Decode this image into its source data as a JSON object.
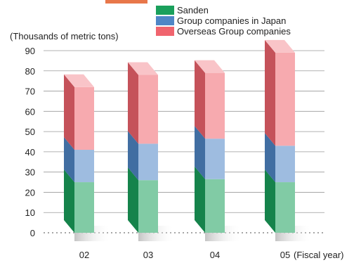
{
  "chart_data": {
    "type": "bar",
    "stacked": true,
    "style": "3d",
    "title": "",
    "ylabel": "(Thousands of metric tons)",
    "xlabel": "(Fiscal year)",
    "ylim": [
      0,
      90
    ],
    "yticks": [
      0,
      10,
      20,
      30,
      40,
      50,
      60,
      70,
      80,
      90
    ],
    "grid": true,
    "legend_position": "top-right",
    "categories": [
      "02",
      "03",
      "04",
      "05"
    ],
    "series": [
      {
        "name": "Sanden",
        "values": [
          25,
          26,
          26.5,
          25
        ],
        "color": "#1aa05c"
      },
      {
        "name": "Group companies in Japan",
        "values": [
          16,
          18,
          20,
          18
        ],
        "color": "#4f86c6"
      },
      {
        "name": "Overseas Group companies",
        "values": [
          31,
          34,
          32.5,
          46
        ],
        "color": "#f0646e"
      }
    ]
  }
}
